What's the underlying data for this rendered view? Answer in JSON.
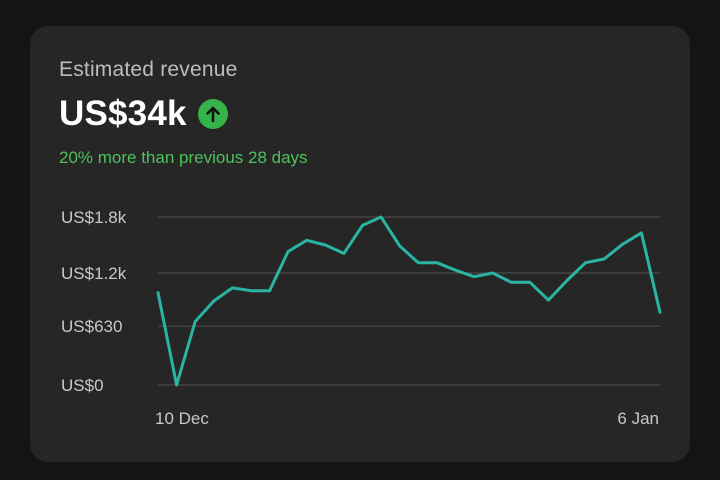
{
  "card": {
    "title": "Estimated revenue",
    "value": "US$34k",
    "trend_icon": "arrow-up-icon",
    "comparison": "20% more than previous 28 days",
    "accent_color": "#35b34a",
    "line_color": "#2ab5a3"
  },
  "chart_data": {
    "type": "line",
    "title": "",
    "xlabel": "",
    "ylabel": "",
    "ylim": [
      0,
      1800
    ],
    "grid": true,
    "y_ticks": [
      {
        "value": 0,
        "label": "US$0"
      },
      {
        "value": 630,
        "label": "US$630"
      },
      {
        "value": 1200,
        "label": "US$1.2k"
      },
      {
        "value": 1800,
        "label": "US$1.8k"
      }
    ],
    "x_tick_labels": [
      "10 Dec",
      "6 Jan"
    ],
    "x_range": [
      "10 Dec",
      "6 Jan"
    ],
    "series": [
      {
        "values": [
          990,
          0,
          680,
          900,
          1040,
          1010,
          1010,
          1430,
          1550,
          1500,
          1410,
          1710,
          1800,
          1490,
          1310,
          1310,
          1230,
          1160,
          1200,
          1100,
          1100,
          910,
          1120,
          1310,
          1350,
          1510,
          1630,
          780
        ]
      }
    ]
  }
}
